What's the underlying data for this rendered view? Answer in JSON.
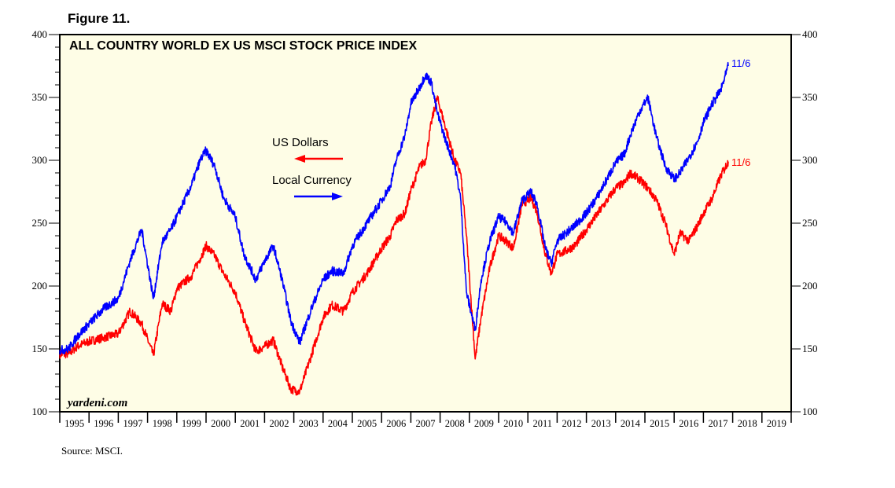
{
  "figure_label": "Figure 11.",
  "source": "Source: MSCI.",
  "watermark": "yardeni.com",
  "colors": {
    "background": "#fefde6",
    "usd": "#ff0000",
    "local": "#0000ff"
  },
  "chart_data": {
    "type": "line",
    "title": "ALL COUNTRY WORLD EX US MSCI STOCK PRICE INDEX",
    "xlabel": "",
    "ylabel": "",
    "xlim": [
      1995,
      2020
    ],
    "ylim": [
      100,
      400
    ],
    "yticks": [
      100,
      150,
      200,
      250,
      300,
      350,
      400
    ],
    "xtick_labels": [
      "1995",
      "1996",
      "1997",
      "1998",
      "1999",
      "2000",
      "2001",
      "2002",
      "2003",
      "2004",
      "2005",
      "2006",
      "2007",
      "2008",
      "2009",
      "2010",
      "2011",
      "2012",
      "2013",
      "2014",
      "2015",
      "2016",
      "2017",
      "2018",
      "2019"
    ],
    "legend_placement": "inside-left",
    "grid": false,
    "end_label": "11/6",
    "series": [
      {
        "name": "US Dollars",
        "color": "#ff0000",
        "x": [
          1995.0,
          1995.3,
          1995.6,
          1996.0,
          1996.5,
          1997.0,
          1997.4,
          1997.8,
          1998.2,
          1998.5,
          1998.8,
          1999.0,
          1999.5,
          1999.8,
          2000.0,
          2000.3,
          2000.6,
          2001.0,
          2001.3,
          2001.7,
          2002.0,
          2002.3,
          2002.6,
          2002.9,
          2003.2,
          2003.6,
          2004.0,
          2004.3,
          2004.7,
          2005.0,
          2005.5,
          2006.0,
          2006.3,
          2006.5,
          2006.8,
          2007.0,
          2007.3,
          2007.5,
          2007.7,
          2007.9,
          2008.2,
          2008.5,
          2008.7,
          2008.9,
          2009.2,
          2009.4,
          2009.7,
          2010.0,
          2010.3,
          2010.5,
          2010.8,
          2011.1,
          2011.3,
          2011.6,
          2011.8,
          2012.0,
          2012.3,
          2012.6,
          2013.0,
          2013.4,
          2013.7,
          2014.0,
          2014.3,
          2014.5,
          2014.8,
          2015.1,
          2015.4,
          2015.7,
          2016.0,
          2016.2,
          2016.5,
          2016.8,
          2017.0,
          2017.3,
          2017.6,
          2017.85
        ],
        "values": [
          146,
          146,
          152,
          156,
          159,
          162,
          180,
          170,
          145,
          186,
          180,
          198,
          208,
          222,
          232,
          224,
          210,
          195,
          173,
          148,
          152,
          157,
          136,
          118,
          116,
          145,
          175,
          185,
          180,
          195,
          210,
          230,
          240,
          252,
          258,
          276,
          295,
          300,
          330,
          350,
          325,
          300,
          290,
          240,
          142,
          175,
          215,
          240,
          235,
          230,
          265,
          270,
          260,
          225,
          210,
          225,
          228,
          232,
          245,
          258,
          268,
          278,
          282,
          290,
          285,
          278,
          268,
          250,
          225,
          242,
          236,
          248,
          258,
          270,
          288,
          299
        ]
      },
      {
        "name": "Local Currency",
        "color": "#0000ff",
        "x": [
          1995.0,
          1995.3,
          1995.6,
          1996.0,
          1996.5,
          1997.0,
          1997.4,
          1997.8,
          1998.2,
          1998.5,
          1998.8,
          1999.0,
          1999.5,
          1999.8,
          2000.0,
          2000.3,
          2000.6,
          2001.0,
          2001.3,
          2001.7,
          2002.0,
          2002.3,
          2002.6,
          2002.9,
          2003.2,
          2003.6,
          2004.0,
          2004.3,
          2004.7,
          2005.0,
          2005.5,
          2006.0,
          2006.3,
          2006.5,
          2006.8,
          2007.0,
          2007.3,
          2007.5,
          2007.7,
          2007.9,
          2008.2,
          2008.5,
          2008.7,
          2008.9,
          2009.2,
          2009.4,
          2009.7,
          2010.0,
          2010.3,
          2010.5,
          2010.8,
          2011.1,
          2011.3,
          2011.6,
          2011.8,
          2012.0,
          2012.3,
          2012.6,
          2013.0,
          2013.4,
          2013.7,
          2014.0,
          2014.3,
          2014.5,
          2014.8,
          2015.1,
          2015.4,
          2015.7,
          2016.0,
          2016.2,
          2016.5,
          2016.8,
          2017.0,
          2017.3,
          2017.6,
          2017.85
        ],
        "values": [
          149,
          150,
          160,
          170,
          182,
          190,
          220,
          245,
          190,
          235,
          245,
          255,
          280,
          300,
          308,
          295,
          270,
          255,
          225,
          205,
          220,
          232,
          205,
          172,
          155,
          182,
          205,
          212,
          210,
          232,
          250,
          268,
          280,
          300,
          320,
          345,
          358,
          368,
          362,
          338,
          315,
          296,
          270,
          195,
          165,
          205,
          236,
          255,
          250,
          242,
          268,
          275,
          266,
          230,
          218,
          236,
          242,
          248,
          258,
          272,
          285,
          298,
          305,
          320,
          338,
          350,
          318,
          295,
          285,
          290,
          302,
          315,
          330,
          345,
          356,
          375
        ]
      }
    ]
  }
}
